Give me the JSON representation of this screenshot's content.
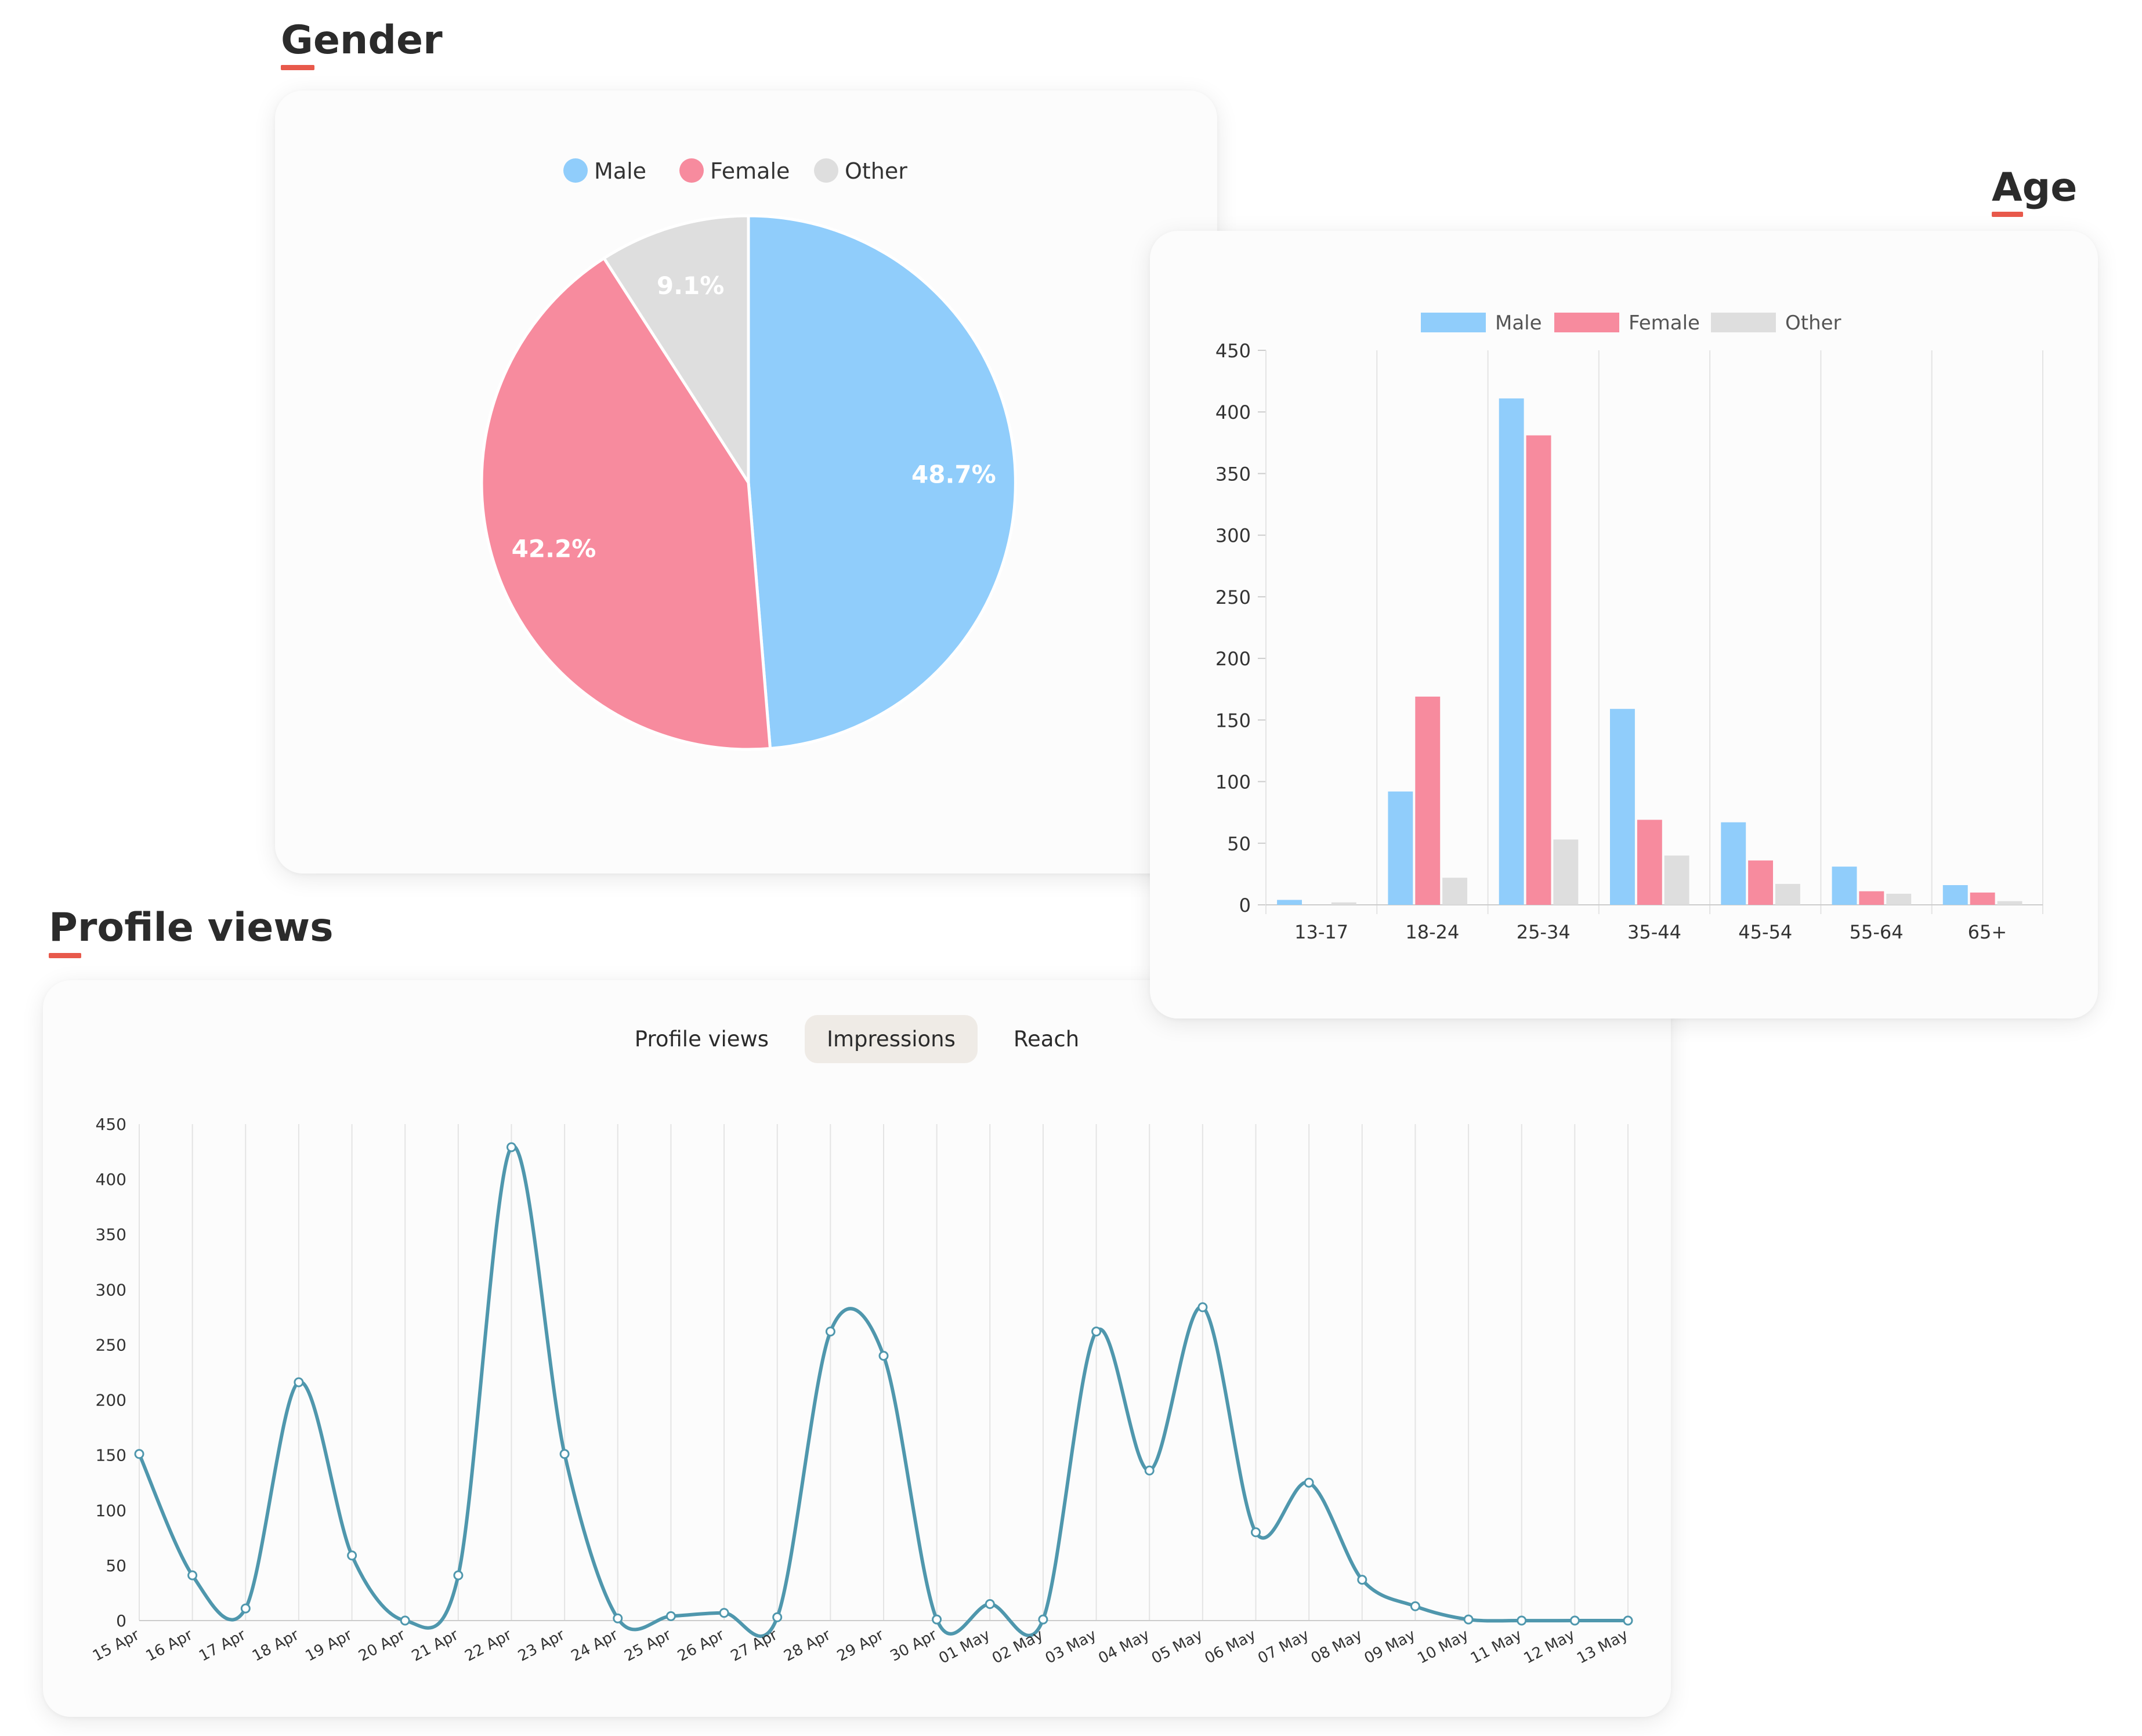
{
  "colors": {
    "male": "#90cdfb",
    "female": "#f78b9e",
    "other": "#dedede",
    "line": "#4f97ad",
    "grid": "#e4e4e4",
    "accent": "#e8594b"
  },
  "sections": {
    "gender_title": "Gender",
    "age_title": "Age",
    "views_title": "Profile views"
  },
  "tabs": [
    {
      "label": "Profile views",
      "active": false
    },
    {
      "label": "Impressions",
      "active": true
    },
    {
      "label": "Reach",
      "active": false
    }
  ],
  "chart_data": [
    {
      "type": "pie",
      "title": "Gender",
      "legend": [
        "Male",
        "Female",
        "Other"
      ],
      "values": [
        48.7,
        42.2,
        9.1
      ],
      "labels": [
        "48.7%",
        "42.2%",
        "9.1%"
      ],
      "legend_position": "top"
    },
    {
      "type": "bar",
      "title": "Age",
      "categories": [
        "13-17",
        "18-24",
        "25-34",
        "35-44",
        "45-54",
        "55-64",
        "65+"
      ],
      "series": [
        {
          "name": "Male",
          "values": [
            4,
            92,
            411,
            159,
            67,
            31,
            16
          ]
        },
        {
          "name": "Female",
          "values": [
            0,
            169,
            381,
            69,
            36,
            11,
            10
          ]
        },
        {
          "name": "Other",
          "values": [
            2,
            22,
            53,
            40,
            17,
            9,
            3
          ]
        }
      ],
      "ylim": [
        0,
        450
      ],
      "yticks": [
        0,
        50,
        100,
        150,
        200,
        250,
        300,
        350,
        400,
        450
      ],
      "grid": true,
      "legend_position": "top"
    },
    {
      "type": "line",
      "title": "Profile views",
      "x": [
        "15 Apr",
        "16 Apr",
        "17 Apr",
        "18 Apr",
        "19 Apr",
        "20 Apr",
        "21 Apr",
        "22 Apr",
        "23 Apr",
        "24 Apr",
        "25 Apr",
        "26 Apr",
        "27 Apr",
        "28 Apr",
        "29 Apr",
        "30 Apr",
        "01 May",
        "02 May",
        "03 May",
        "04 May",
        "05 May",
        "06 May",
        "07 May",
        "08 May",
        "09 May",
        "10 May",
        "11 May",
        "12 May",
        "13 May"
      ],
      "values": [
        151,
        41,
        11,
        216,
        59,
        0,
        41,
        429,
        151,
        2,
        4,
        7,
        3,
        262,
        240,
        1,
        15,
        1,
        262,
        136,
        284,
        80,
        125,
        37,
        13,
        1,
        0,
        0,
        0
      ],
      "ylim": [
        0,
        450
      ],
      "yticks": [
        0,
        50,
        100,
        150,
        200,
        250,
        300,
        350,
        400,
        450
      ],
      "grid": true
    }
  ]
}
